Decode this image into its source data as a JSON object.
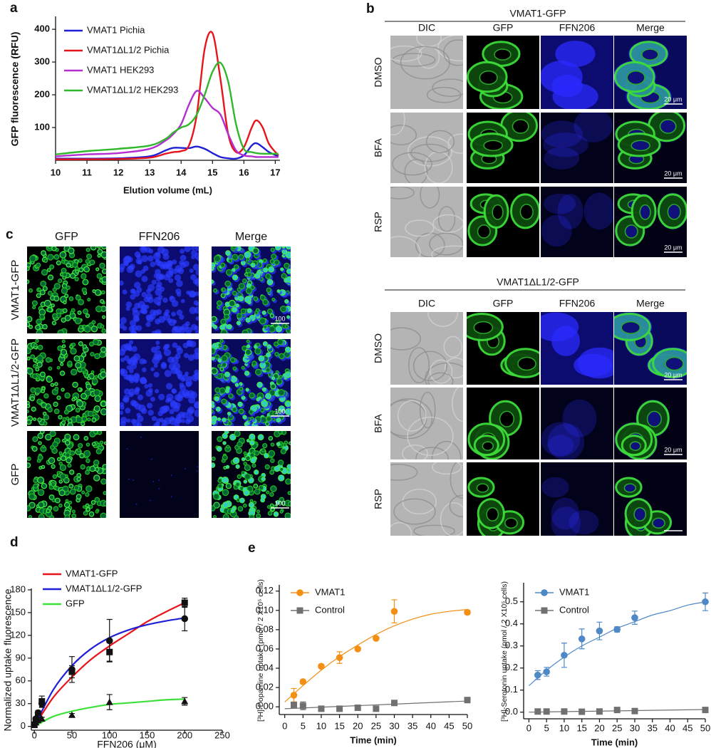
{
  "chart_data": [
    {
      "panel": "a",
      "type": "line",
      "x": [
        10,
        11,
        12,
        13,
        13.5,
        13.75,
        14,
        14.25,
        14.5,
        14.75,
        15,
        15.25,
        15.5,
        15.75,
        16,
        16.25,
        16.4,
        16.6,
        16.8,
        17.1
      ],
      "xlim": [
        10,
        17.15
      ],
      "xticks": [
        10,
        11,
        12,
        13,
        14,
        15,
        16,
        17
      ],
      "ylim": [
        0,
        435
      ],
      "yticks": [
        100,
        200,
        300,
        400
      ],
      "xlabel": "Elution volume (mL)",
      "ylabel": "GFP fluorescence (RFU)",
      "series": [
        {
          "name": "VMAT1 Pichia",
          "color": "#1f1fd6",
          "values": [
            5,
            5,
            6,
            12,
            30,
            38,
            38,
            37,
            42,
            35,
            22,
            10,
            6,
            5,
            15,
            45,
            52,
            40,
            25,
            12
          ]
        },
        {
          "name": "VMAT1ΔL1/2 Pichia",
          "color": "#e8141b",
          "values": [
            3,
            3,
            4,
            8,
            20,
            25,
            28,
            45,
            140,
            340,
            388,
            250,
            80,
            25,
            40,
            100,
            122,
            100,
            50,
            15
          ]
        },
        {
          "name": "VMAT1 HEK293",
          "color": "#b32fcf",
          "values": [
            12,
            18,
            22,
            35,
            60,
            80,
            110,
            170,
            212,
            190,
            160,
            140,
            80,
            30,
            15,
            12,
            10,
            10,
            10,
            10
          ]
        },
        {
          "name": "VMAT1ΔL1/2 HEK293",
          "color": "#2fb82a",
          "values": [
            18,
            28,
            35,
            45,
            65,
            85,
            100,
            110,
            140,
            200,
            270,
            298,
            240,
            110,
            35,
            25,
            22,
            20,
            20,
            20
          ]
        }
      ]
    },
    {
      "panel": "d",
      "type": "scatter",
      "xlim": [
        -4,
        250
      ],
      "xticks": [
        0,
        50,
        100,
        150,
        200,
        250
      ],
      "ylim": [
        -5,
        180
      ],
      "yticks": [
        0,
        30,
        60,
        90,
        120,
        150,
        180
      ],
      "xlabel": "FFN206 (μM)",
      "ylabel": "Normalized uptake fluorescence",
      "series": [
        {
          "name": "VMAT1-GFP",
          "color": "#e8141b",
          "marker": "square",
          "x": [
            0,
            2,
            5,
            10,
            50,
            100,
            200
          ],
          "values": [
            2,
            8,
            15,
            33,
            72,
            98,
            163
          ],
          "errors": [
            1,
            2,
            3,
            7,
            8,
            12,
            6
          ],
          "fit": {
            "x": [
              0,
              25,
              50,
              75,
              100,
              125,
              150,
              175,
              200
            ],
            "values": [
              0,
              38,
              65,
              88,
              106,
              122,
              138,
              151,
              163
            ]
          }
        },
        {
          "name": "VMAT1ΔL1/2-GFP",
          "color": "#1f1fd6",
          "marker": "circle",
          "x": [
            0,
            2,
            5,
            10,
            50,
            100,
            200
          ],
          "values": [
            3,
            10,
            18,
            30,
            75,
            113,
            142
          ],
          "errors": [
            1,
            2,
            3,
            5,
            17,
            28,
            16
          ],
          "fit": {
            "x": [
              0,
              25,
              50,
              75,
              100,
              125,
              150,
              175,
              200
            ],
            "values": [
              0,
              48,
              80,
              102,
              117,
              127,
              134,
              139,
              143
            ]
          }
        },
        {
          "name": "GFP",
          "color": "#3ee03a",
          "marker": "triangle",
          "x": [
            0,
            2,
            5,
            10,
            50,
            100,
            200
          ],
          "values": [
            2,
            5,
            8,
            10,
            15,
            32,
            33
          ],
          "errors": [
            1,
            1,
            2,
            2,
            2,
            10,
            5
          ],
          "fit": {
            "x": [
              0,
              25,
              50,
              75,
              100,
              125,
              150,
              175,
              200
            ],
            "values": [
              0,
              13,
              20,
              25,
              29,
              31,
              33,
              35,
              36
            ]
          }
        }
      ]
    },
    {
      "panel": "e",
      "type": "scatter",
      "xlim": [
        -1.5,
        50
      ],
      "xticks": [
        0,
        5,
        10,
        15,
        20,
        25,
        30,
        35,
        40,
        45,
        50
      ],
      "ylim": [
        -0.008,
        0.125
      ],
      "yticks": [
        {
          "value": 0,
          "label": "0.00"
        },
        {
          "value": 0.02,
          "label": "0.02"
        },
        {
          "value": 0.04,
          "label": "0.04"
        },
        {
          "value": 0.06,
          "label": "0.06"
        },
        {
          "value": 0.08,
          "label": "0.08"
        },
        {
          "value": 0.1,
          "label": "0.10"
        },
        {
          "value": 0.12,
          "label": "0.12"
        }
      ],
      "xlabel": "Time (min)",
      "ylabel": "[³H]-Dopamine uptake (pmol / 2 X10⁵ cells)",
      "series": [
        {
          "name": "VMAT1",
          "color": "#f39014",
          "marker": "circle",
          "x": [
            2.5,
            5,
            10,
            15,
            20,
            25,
            30,
            50
          ],
          "values": [
            0.012,
            0.026,
            0.042,
            0.051,
            0.06,
            0.071,
            0.099,
            0.098
          ],
          "errors": [
            0.007,
            0.002,
            0.002,
            0.006,
            0.001,
            0.001,
            0.012,
            0.002
          ],
          "fit": {
            "x": [
              0,
              5,
              10,
              15,
              20,
              25,
              30,
              35,
              40,
              45,
              50
            ],
            "values": [
              0.005,
              0.022,
              0.038,
              0.052,
              0.064,
              0.075,
              0.084,
              0.091,
              0.096,
              0.099,
              0.101
            ]
          }
        },
        {
          "name": "Control",
          "color": "#707070",
          "marker": "square",
          "x": [
            2.5,
            5,
            10,
            15,
            20,
            25,
            30,
            50
          ],
          "values": [
            0.002,
            0.001,
            -0.002,
            -0.002,
            -0.001,
            -0.002,
            0.004,
            0.007
          ],
          "errors": [
            0.002,
            0.004,
            0.001,
            0.001,
            0.001,
            0.001,
            0.001,
            0.001
          ],
          "fit": {
            "x": [
              0,
              50
            ],
            "values": [
              -0.002,
              0.006
            ]
          }
        }
      ]
    },
    {
      "type": "scatter",
      "xlim": [
        -1.5,
        50
      ],
      "xticks": [
        0,
        5,
        10,
        15,
        20,
        25,
        30,
        35,
        40,
        45,
        50
      ],
      "ylim": [
        -0.03,
        0.58
      ],
      "yticks": [
        {
          "value": 0,
          "label": "0.0"
        },
        0.1,
        0.2,
        0.3,
        0.4,
        0.5
      ],
      "xlabel": "Time (min)",
      "ylabel": "[³H]-Serotonin uptake (pmol / 2 X10⁵ cells)",
      "series": [
        {
          "name": "VMAT1",
          "color": "#4f88c6",
          "marker": "circle",
          "x": [
            2.5,
            5,
            10,
            15,
            20,
            25,
            30,
            50
          ],
          "values": [
            0.168,
            0.183,
            0.258,
            0.332,
            0.368,
            0.375,
            0.428,
            0.5
          ],
          "errors": [
            0.02,
            0.02,
            0.055,
            0.045,
            0.04,
            0.012,
            0.03,
            0.04
          ],
          "fit": {
            "x": [
              0,
              5,
              10,
              15,
              20,
              25,
              30,
              35,
              40,
              45,
              50
            ],
            "values": [
              0.12,
              0.19,
              0.25,
              0.3,
              0.34,
              0.38,
              0.41,
              0.44,
              0.46,
              0.485,
              0.5
            ]
          }
        },
        {
          "name": "Control",
          "color": "#707070",
          "marker": "square",
          "x": [
            2.5,
            5,
            10,
            15,
            20,
            25,
            30,
            50
          ],
          "values": [
            0.003,
            0.003,
            0.003,
            0.002,
            0.003,
            0.01,
            0.005,
            0.01
          ],
          "errors": [
            0.002,
            0.002,
            0.002,
            0.002,
            0.002,
            0.003,
            0.002,
            0.003
          ],
          "fit": {
            "x": [
              0,
              50
            ],
            "values": [
              0,
              0.012
            ]
          }
        }
      ]
    }
  ],
  "panel_b": {
    "label": "b",
    "blocks": [
      {
        "title": "VMAT1-GFP",
        "columns": [
          "DIC",
          "GFP",
          "FFN206",
          "Merge"
        ],
        "rows": [
          "DMSO",
          "BFA",
          "RSP"
        ],
        "scale_bar_labels": [
          "20 μm",
          "20 μm",
          "20 μm"
        ]
      },
      {
        "title": "VMAT1ΔL1/2-GFP",
        "columns": [
          "DIC",
          "GFP",
          "FFN206",
          "Merge"
        ],
        "rows": [
          "DMSO",
          "BFA",
          "RSP"
        ],
        "scale_bar_labels": [
          "20 μm",
          "20 μm"
        ]
      }
    ]
  },
  "panel_c": {
    "label": "c",
    "columns": [
      "GFP",
      "FFN206",
      "Merge"
    ],
    "rows": [
      "VMAT1-GFP",
      "VMAT1ΔL1/2-GFP",
      "GFP"
    ],
    "scale_bar_labels": [
      "100",
      "100",
      "100"
    ]
  }
}
